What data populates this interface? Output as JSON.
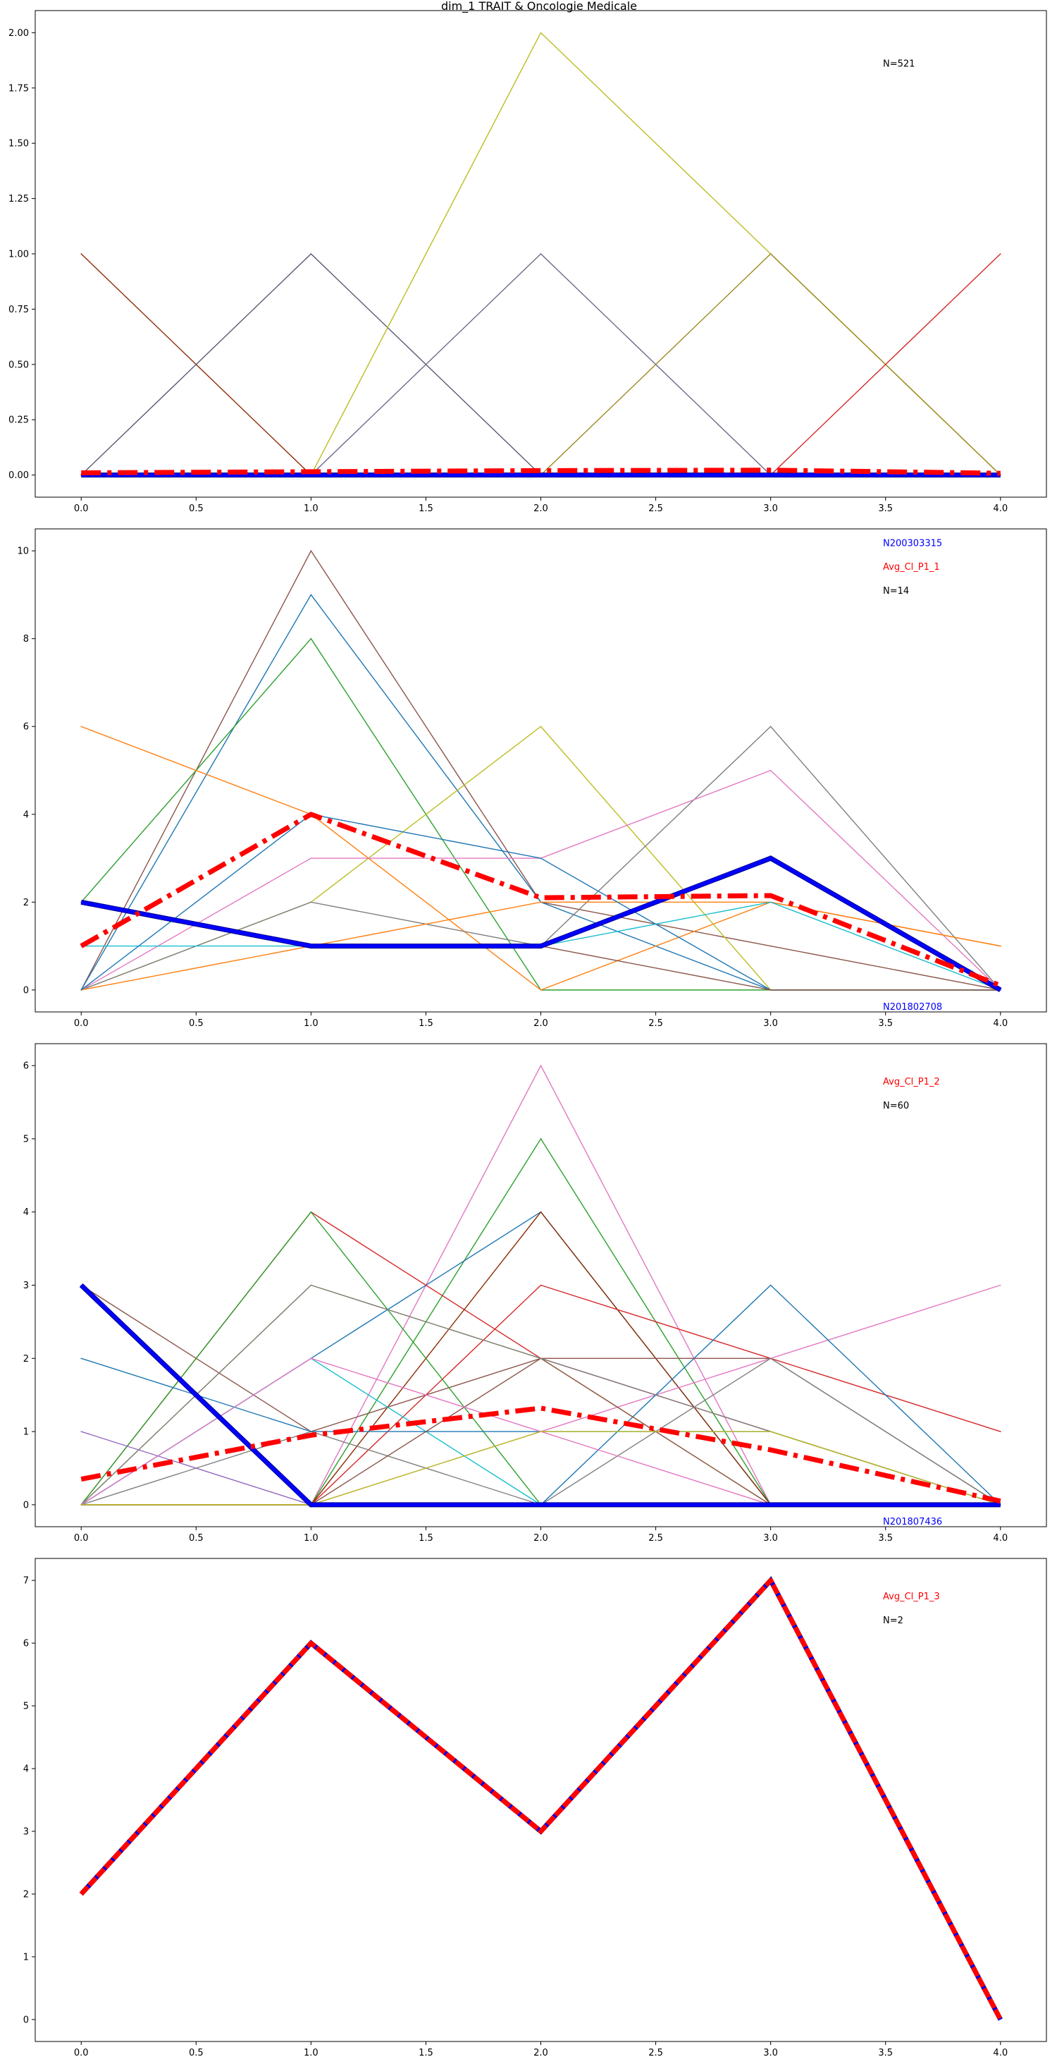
{
  "figure": {
    "title": "dim_1 TRAIT & Oncologie Medicale",
    "colors": {
      "avg": "#ff0000",
      "highlight": "#0000ff",
      "count_label": "#000000"
    }
  },
  "chart_data": [
    {
      "type": "line",
      "x": [
        0,
        1,
        2,
        3,
        4
      ],
      "ylim": [
        -0.1,
        2.1
      ],
      "xticks": [
        "0.0",
        "0.5",
        "1.0",
        "1.5",
        "2.0",
        "2.5",
        "3.0",
        "3.5",
        "4.0"
      ],
      "yticks": [
        "0.00",
        "0.25",
        "0.50",
        "0.75",
        "1.00",
        "1.25",
        "1.50",
        "1.75",
        "2.00"
      ],
      "labels": {
        "top": "",
        "avg": "",
        "count": "N=521",
        "bottom": ""
      },
      "background_series": [
        {
          "color": "#8c2d04",
          "values": [
            1,
            0,
            0,
            0,
            0
          ]
        },
        {
          "color": "#595973",
          "values": [
            0,
            1,
            0,
            0,
            0
          ]
        },
        {
          "color": "#bcbd22",
          "values": [
            0,
            0,
            2,
            1,
            0
          ]
        },
        {
          "color": "#6b6b8a",
          "values": [
            0,
            0,
            1,
            0,
            0
          ]
        },
        {
          "color": "#9a8a20",
          "values": [
            0,
            0,
            0,
            1,
            0
          ]
        },
        {
          "color": "#d62728",
          "values": [
            0,
            0,
            0,
            0,
            1
          ]
        }
      ],
      "highlight_series": [
        0,
        0,
        0,
        0,
        0
      ],
      "avg_series": [
        0.01,
        0.015,
        0.02,
        0.022,
        0.008
      ]
    },
    {
      "type": "line",
      "x": [
        0,
        1,
        2,
        3,
        4
      ],
      "ylim": [
        -0.5,
        10.5
      ],
      "xticks": [
        "0.0",
        "0.5",
        "1.0",
        "1.5",
        "2.0",
        "2.5",
        "3.0",
        "3.5",
        "4.0"
      ],
      "yticks": [
        "0",
        "2",
        "4",
        "6",
        "8",
        "10"
      ],
      "labels": {
        "top": "N200303315",
        "avg": "Avg_Cl_P1_1",
        "count": "N=14",
        "bottom": "N201802708"
      },
      "background_series": [
        {
          "color": "#8c564b",
          "values": [
            0,
            10,
            2,
            1,
            0
          ]
        },
        {
          "color": "#1f77b4",
          "values": [
            0,
            9,
            2,
            0,
            0
          ]
        },
        {
          "color": "#2ca02c",
          "values": [
            2,
            8,
            0,
            0,
            0
          ]
        },
        {
          "color": "#ff7f0e",
          "values": [
            6,
            4,
            0,
            2,
            1
          ]
        },
        {
          "color": "#bcbd22",
          "values": [
            0,
            2,
            6,
            0,
            0
          ]
        },
        {
          "color": "#7f7f7f",
          "values": [
            0,
            2,
            1,
            6,
            0
          ]
        },
        {
          "color": "#e377c2",
          "values": [
            0,
            3,
            3,
            5,
            0
          ]
        },
        {
          "color": "#ff7f0e",
          "values": [
            0,
            1,
            2,
            2,
            1
          ]
        },
        {
          "color": "#17becf",
          "values": [
            1,
            1,
            1,
            2,
            0
          ]
        },
        {
          "color": "#1f77b4",
          "values": [
            0,
            4,
            3,
            0,
            0
          ]
        },
        {
          "color": "#8c564b",
          "values": [
            2,
            1,
            1,
            0,
            0
          ]
        }
      ],
      "highlight_series": [
        2,
        1,
        1,
        3,
        0
      ],
      "avg_series": [
        1,
        4,
        2.1,
        2.15,
        0.1
      ]
    },
    {
      "type": "line",
      "x": [
        0,
        1,
        2,
        3,
        4
      ],
      "ylim": [
        -0.3,
        6.3
      ],
      "xticks": [
        "0.0",
        "0.5",
        "1.0",
        "1.5",
        "2.0",
        "2.5",
        "3.0",
        "3.5",
        "4.0"
      ],
      "yticks": [
        "0",
        "1",
        "2",
        "3",
        "4",
        "5",
        "6"
      ],
      "labels": {
        "top": "",
        "avg": "Avg_Cl_P1_2",
        "count": "N=60",
        "bottom": "N201807436"
      },
      "background_series": [
        {
          "color": "#e377c2",
          "values": [
            0,
            0,
            6,
            0,
            0
          ]
        },
        {
          "color": "#2ca02c",
          "values": [
            0,
            0,
            5,
            0,
            0
          ]
        },
        {
          "color": "#1f77b4",
          "values": [
            0,
            2,
            4,
            0,
            0
          ]
        },
        {
          "color": "#d62728",
          "values": [
            0,
            4,
            2,
            1,
            0
          ]
        },
        {
          "color": "#8c2d04",
          "values": [
            0,
            0,
            4,
            0,
            0
          ]
        },
        {
          "color": "#d62728",
          "values": [
            0,
            0,
            3,
            2,
            1
          ]
        },
        {
          "color": "#e377c2",
          "values": [
            0,
            0,
            1,
            2,
            3
          ]
        },
        {
          "color": "#1f77b4",
          "values": [
            0,
            0,
            0,
            3,
            0
          ]
        },
        {
          "color": "#bcbd22",
          "values": [
            0,
            3,
            2,
            0,
            0
          ]
        },
        {
          "color": "#8c564b",
          "values": [
            3,
            1,
            2,
            2,
            0
          ]
        },
        {
          "color": "#17becf",
          "values": [
            0,
            2,
            0,
            0,
            0
          ]
        },
        {
          "color": "#2ca02c",
          "values": [
            0,
            4,
            0,
            0,
            0
          ]
        },
        {
          "color": "#7f7f7f",
          "values": [
            0,
            1,
            0,
            2,
            0
          ]
        },
        {
          "color": "#1f77b4",
          "values": [
            2,
            1,
            1,
            1,
            0
          ]
        },
        {
          "color": "#9467bd",
          "values": [
            1,
            0,
            0,
            0,
            0
          ]
        },
        {
          "color": "#8c564b",
          "values": [
            0,
            0,
            2,
            0,
            0
          ]
        },
        {
          "color": "#7f7f7f",
          "values": [
            0,
            3,
            2,
            1,
            0
          ]
        },
        {
          "color": "#e377c2",
          "values": [
            0,
            2,
            1,
            0,
            0
          ]
        },
        {
          "color": "#bcbd22",
          "values": [
            0,
            0,
            1,
            1,
            0
          ]
        }
      ],
      "highlight_series": [
        3,
        0,
        0,
        0,
        0
      ],
      "avg_series": [
        0.35,
        0.95,
        1.32,
        0.75,
        0.05
      ]
    },
    {
      "type": "line",
      "x": [
        0,
        1,
        2,
        3,
        4
      ],
      "ylim": [
        -0.35,
        7.35
      ],
      "xticks": [
        "0.0",
        "0.5",
        "1.0",
        "1.5",
        "2.0",
        "2.5",
        "3.0",
        "3.5",
        "4.0"
      ],
      "yticks": [
        "0",
        "1",
        "2",
        "3",
        "4",
        "5",
        "6",
        "7"
      ],
      "labels": {
        "top": "",
        "avg": "Avg_Cl_P1_3",
        "count": "N=2",
        "bottom": ""
      },
      "background_series": [],
      "highlight_series": [
        2,
        6,
        3,
        7,
        0
      ],
      "avg_series": [
        2,
        6,
        3,
        7,
        0
      ]
    }
  ]
}
